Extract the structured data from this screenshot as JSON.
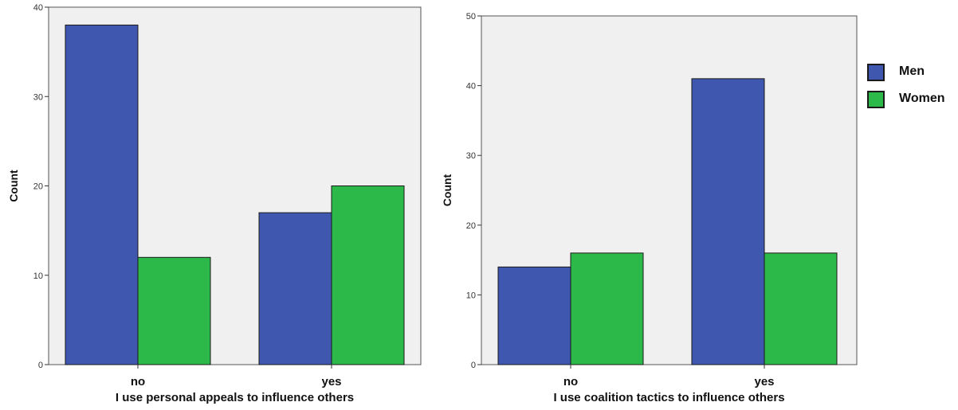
{
  "chart_data": [
    {
      "type": "bar",
      "categories": [
        "no",
        "yes"
      ],
      "series": [
        {
          "name": "Men",
          "values": [
            38,
            17
          ]
        },
        {
          "name": "Women",
          "values": [
            12,
            20
          ]
        }
      ],
      "title": "",
      "xlabel": "I use personal appeals to influence others",
      "ylabel": "Count",
      "ylim": [
        0,
        40
      ],
      "yticks": [
        0,
        10,
        20,
        30,
        40
      ],
      "grid": false
    },
    {
      "type": "bar",
      "categories": [
        "no",
        "yes"
      ],
      "series": [
        {
          "name": "Men",
          "values": [
            14,
            41
          ]
        },
        {
          "name": "Women",
          "values": [
            16,
            16
          ]
        }
      ],
      "title": "",
      "xlabel": "I use coalition tactics to influence others",
      "ylabel": "Count",
      "ylim": [
        0,
        50
      ],
      "yticks": [
        0,
        10,
        20,
        30,
        40,
        50
      ],
      "grid": false
    }
  ],
  "legend": {
    "placement": "right",
    "items": [
      {
        "label": "Men",
        "color": "#3f57ae"
      },
      {
        "label": "Women",
        "color": "#2db84a"
      }
    ]
  },
  "colors": {
    "plot_background": "#f0f0f0",
    "men": "#3f57ae",
    "women": "#2db84a"
  }
}
